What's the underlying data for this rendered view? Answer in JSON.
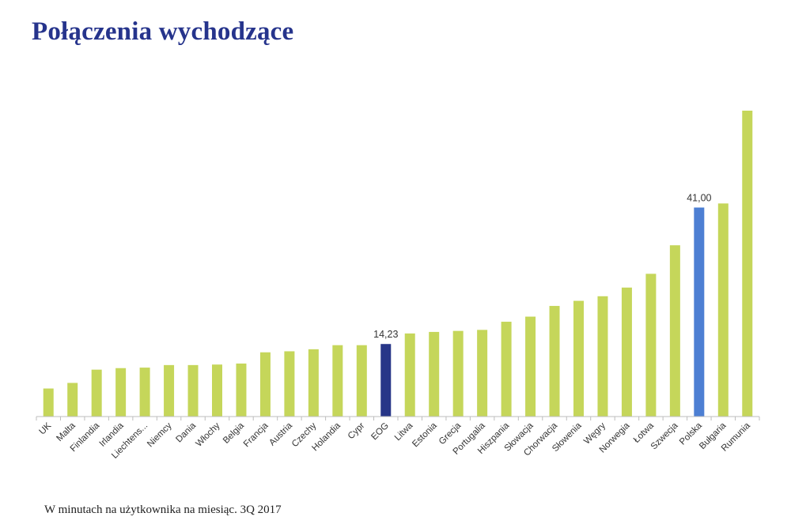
{
  "title": "Połączenia wychodzące",
  "footnote": "W minutach na użytkownika na miesiąc. 3Q 2017",
  "colors": {
    "default_bar": "#c5d65a",
    "eog_bar": "#273688",
    "highlight_bar": "#4d7fd3",
    "axis": "#bdbdbd",
    "title": "#26348c"
  },
  "chart_data": {
    "type": "bar",
    "title": "Połączenia wychodzące",
    "xlabel": "",
    "ylabel": "",
    "ylim": [
      0,
      60
    ],
    "grid": false,
    "legend": "none",
    "categories": [
      "UK",
      "Malta",
      "Finlandia",
      "Irlandia",
      "Liechtens...",
      "Niemcy",
      "Dania",
      "Włochy",
      "Belgia",
      "Francja",
      "Austria",
      "Czechy",
      "Holandia",
      "Cypr",
      "EOG",
      "Litwa",
      "Estonia",
      "Grecja",
      "Portugalia",
      "Hiszpania",
      "Słowacja",
      "Chorwacja",
      "Słowenia",
      "Węgry",
      "Norwegia",
      "Łotwa",
      "Szwecja",
      "Polska",
      "Bułgaria",
      "Rumunia"
    ],
    "values": [
      5.5,
      6.6,
      9.2,
      9.5,
      9.6,
      10.1,
      10.1,
      10.2,
      10.4,
      12.6,
      12.8,
      13.2,
      14.0,
      14.0,
      14.23,
      16.3,
      16.6,
      16.8,
      17.0,
      18.6,
      19.6,
      21.7,
      22.7,
      23.6,
      25.3,
      28.0,
      33.6,
      41.0,
      41.8,
      60.0
    ],
    "highlight": {
      "EOG": "eog_bar",
      "Polska": "highlight_bar"
    },
    "data_labels": [
      {
        "category": "EOG",
        "text": "14,23"
      },
      {
        "category": "Polska",
        "text": "41,00"
      }
    ]
  }
}
